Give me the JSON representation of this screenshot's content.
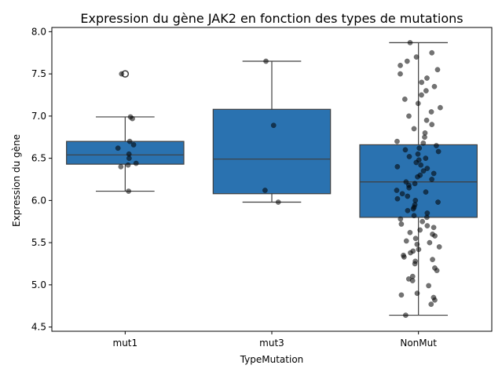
{
  "chart_data": {
    "type": "box",
    "title": "Expression du gène JAK2 en fonction des types de mutations",
    "xlabel": "TypeMutation",
    "ylabel": "Expression du gène",
    "ylim": [
      4.45,
      8.05
    ],
    "yticks": [
      4.5,
      5.0,
      5.5,
      6.0,
      6.5,
      7.0,
      7.5,
      8.0
    ],
    "ytick_labels": [
      "4.5",
      "5.0",
      "5.5",
      "6.0",
      "6.5",
      "7.0",
      "7.5",
      "8.0"
    ],
    "categories": [
      "mut1",
      "mut3",
      "NonMut"
    ],
    "box_color": "#2a72b0",
    "boxes": [
      {
        "category": "mut1",
        "whisker_low": 6.11,
        "q1": 6.43,
        "median": 6.54,
        "q3": 6.7,
        "whisker_high": 6.99,
        "outliers": [
          7.5
        ]
      },
      {
        "category": "mut3",
        "whisker_low": 5.98,
        "q1": 6.08,
        "median": 6.49,
        "q3": 7.08,
        "whisker_high": 7.65,
        "outliers": []
      },
      {
        "category": "NonMut",
        "whisker_low": 4.64,
        "q1": 5.8,
        "median": 6.22,
        "q3": 6.66,
        "whisker_high": 7.87,
        "outliers": []
      }
    ],
    "points": [
      {
        "category": "mut1",
        "values": [
          6.11,
          6.4,
          6.42,
          6.44,
          6.5,
          6.55,
          6.62,
          6.66,
          6.7,
          6.97,
          6.99,
          7.5
        ]
      },
      {
        "category": "mut3",
        "values": [
          5.98,
          6.12,
          6.89,
          7.65
        ]
      },
      {
        "category": "NonMut",
        "values": [
          4.64,
          4.77,
          4.82,
          4.85,
          4.88,
          4.9,
          4.99,
          5.05,
          5.07,
          5.1,
          5.17,
          5.2,
          5.25,
          5.28,
          5.3,
          5.33,
          5.35,
          5.38,
          5.4,
          5.42,
          5.45,
          5.48,
          5.5,
          5.52,
          5.55,
          5.58,
          5.6,
          5.62,
          5.65,
          5.68,
          5.7,
          5.72,
          5.75,
          5.78,
          5.8,
          5.82,
          5.85,
          5.88,
          5.9,
          5.92,
          5.95,
          5.98,
          6.0,
          6.02,
          6.05,
          6.08,
          6.1,
          6.12,
          6.15,
          6.18,
          6.2,
          6.22,
          6.25,
          6.28,
          6.3,
          6.32,
          6.35,
          6.38,
          6.4,
          6.42,
          6.45,
          6.48,
          6.5,
          6.52,
          6.55,
          6.58,
          6.6,
          6.62,
          6.65,
          6.68,
          6.7,
          6.75,
          6.8,
          6.85,
          6.9,
          6.95,
          7.0,
          7.05,
          7.1,
          7.15,
          7.2,
          7.25,
          7.3,
          7.35,
          7.4,
          7.45,
          7.5,
          7.55,
          7.6,
          7.65,
          7.7,
          7.75,
          7.87
        ]
      }
    ]
  }
}
